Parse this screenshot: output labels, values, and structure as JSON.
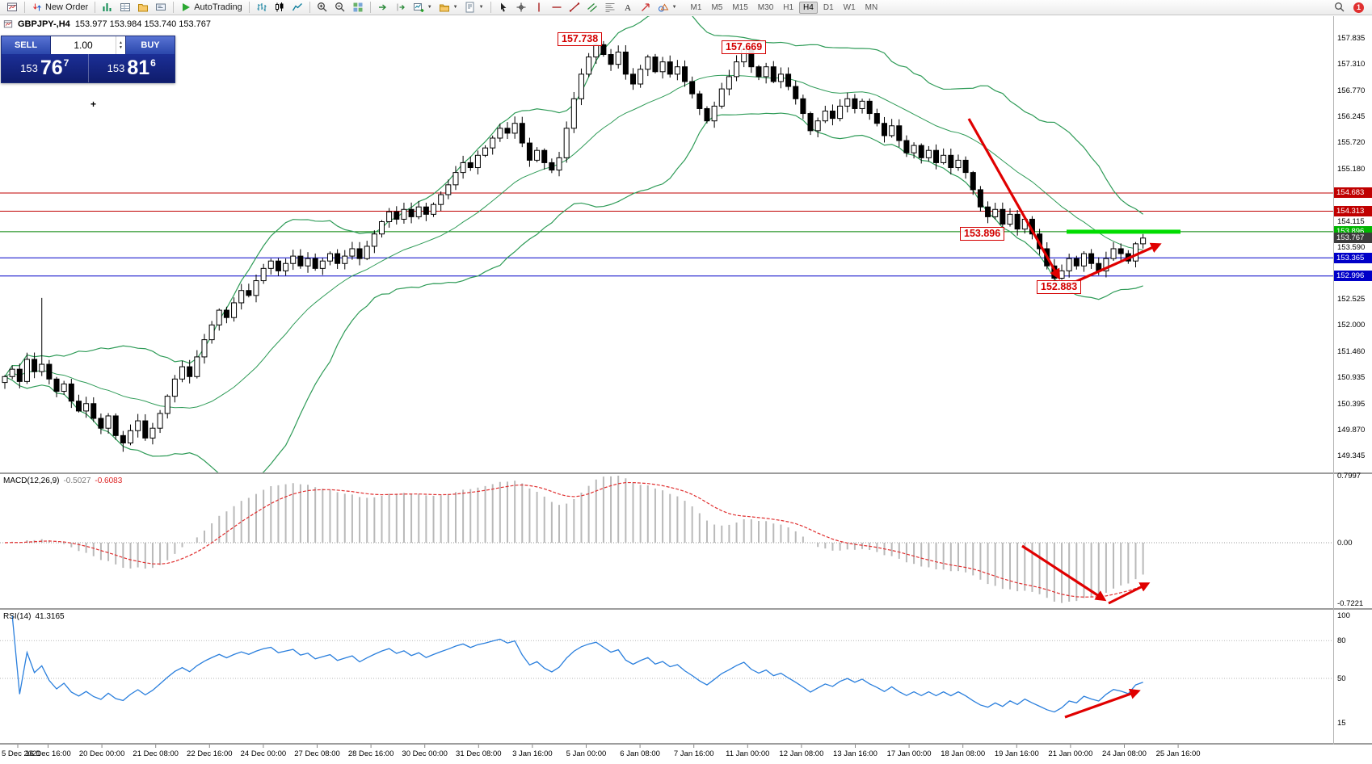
{
  "toolbar": {
    "groups": [
      {
        "items": [
          {
            "icon": "chart-window-icon"
          }
        ]
      },
      {
        "items": [
          {
            "icon": "new-order-icon",
            "label": "New Order"
          }
        ]
      },
      {
        "items": [
          {
            "icon": "market-watch-icon"
          },
          {
            "icon": "data-window-icon"
          },
          {
            "icon": "navigator-icon"
          },
          {
            "icon": "terminal-icon"
          }
        ]
      },
      {
        "items": [
          {
            "icon": "autotrading-icon",
            "label": "AutoTrading"
          }
        ]
      },
      {
        "items": [
          {
            "icon": "bar-chart-icon"
          },
          {
            "icon": "candlestick-chart-icon"
          },
          {
            "icon": "line-chart-icon"
          }
        ]
      },
      {
        "items": [
          {
            "icon": "zoom-in-icon"
          },
          {
            "icon": "zoom-out-icon"
          },
          {
            "icon": "tile-windows-icon"
          }
        ]
      },
      {
        "items": [
          {
            "icon": "auto-scroll-icon"
          },
          {
            "icon": "chart-shift-icon"
          },
          {
            "icon": "new-chart-icon",
            "caret": true
          },
          {
            "icon": "profiles-icon",
            "caret": true
          },
          {
            "icon": "templates-icon",
            "caret": true
          }
        ]
      },
      {
        "items": [
          {
            "icon": "cursor-icon"
          },
          {
            "icon": "crosshair-icon"
          },
          {
            "icon": "vertical-line-icon"
          },
          {
            "icon": "horizontal-line-icon"
          },
          {
            "icon": "trendline-icon"
          },
          {
            "icon": "channel-icon"
          },
          {
            "icon": "fibonacci-icon"
          },
          {
            "icon": "text-icon"
          },
          {
            "icon": "arrow-label-icon"
          },
          {
            "icon": "shapes-icon",
            "caret": true
          }
        ]
      }
    ],
    "timeframes": [
      "M1",
      "M5",
      "M15",
      "M30",
      "H1",
      "H4",
      "D1",
      "W1",
      "MN"
    ],
    "active_timeframe": "H4",
    "notification_count": "1"
  },
  "chart_header": {
    "symbol_period": "GBPJPY-,H4",
    "ohlc": "153.977 153.984 153.740 153.767"
  },
  "trade_panel": {
    "sell_label": "SELL",
    "buy_label": "BUY",
    "volume": "1.00",
    "bid_int": "153",
    "bid_pips": "76",
    "bid_sup": "7",
    "ask_int": "153",
    "ask_pips": "81",
    "ask_sup": "6"
  },
  "annotations": {
    "peak_label": "157.738",
    "second_peak_label": "157.669",
    "resistance_label": "153.896",
    "low_label": "152.883"
  },
  "price_axis": {
    "plain_ticks": [
      "157.835",
      "157.310",
      "156.770",
      "156.245",
      "155.720",
      "155.180",
      "154.115",
      "153.590",
      "152.525",
      "152.000",
      "151.460",
      "150.935",
      "150.395",
      "149.870",
      "149.345"
    ],
    "line_labels": [
      {
        "text": "154.683",
        "price": 154.683,
        "bg": "#c00000",
        "fg": "#ffffff"
      },
      {
        "text": "154.313",
        "price": 154.313,
        "bg": "#c00000",
        "fg": "#ffffff"
      },
      {
        "text": "153.896",
        "price": 153.896,
        "bg": "#00b400",
        "fg": "#ffffff"
      },
      {
        "text": "153.767",
        "price": 153.767,
        "bg": "#3c3c3c",
        "fg": "#ffffff"
      },
      {
        "text": "153.365",
        "price": 153.365,
        "bg": "#0000c8",
        "fg": "#ffffff"
      },
      {
        "text": "152.996",
        "price": 152.996,
        "bg": "#0000c8",
        "fg": "#ffffff"
      }
    ]
  },
  "macd_panel": {
    "label": "MACD(12,26,9)",
    "main_value": "-0.5027",
    "signal_value": "-0.6083",
    "axis_ticks": [
      "0.7997",
      "0.00",
      "-0.7221"
    ]
  },
  "rsi_panel": {
    "label": "RSI(14)",
    "value": "41.3165",
    "axis_ticks": [
      "100",
      "80",
      "50",
      "15"
    ],
    "levels": [
      80,
      50
    ]
  },
  "time_axis": [
    "5 Dec 2021",
    "16 Dec 16:00",
    "20 Dec 00:00",
    "21 Dec 08:00",
    "22 Dec 16:00",
    "24 Dec 00:00",
    "27 Dec 08:00",
    "28 Dec 16:00",
    "30 Dec 00:00",
    "31 Dec 08:00",
    "3 Jan 16:00",
    "5 Jan 00:00",
    "6 Jan 08:00",
    "7 Jan 16:00",
    "11 Jan 00:00",
    "12 Jan 08:00",
    "13 Jan 16:00",
    "17 Jan 00:00",
    "18 Jan 08:00",
    "19 Jan 16:00",
    "21 Jan 00:00",
    "24 Jan 08:00",
    "25 Jan 16:00"
  ],
  "chart_data": {
    "type": "candlestick",
    "symbol": "GBPJPY-",
    "timeframe": "H4",
    "ohlc_header": [
      153.977,
      153.984,
      153.74,
      153.767
    ],
    "ylim": [
      149.0,
      158.28
    ],
    "closes": [
      150.95,
      151.1,
      150.85,
      151.3,
      151.05,
      151.2,
      150.9,
      150.65,
      150.8,
      150.45,
      150.25,
      150.4,
      150.1,
      149.9,
      150.15,
      149.75,
      149.6,
      149.85,
      150.05,
      149.7,
      149.9,
      150.2,
      150.55,
      150.9,
      151.15,
      150.95,
      151.35,
      151.7,
      152.0,
      152.3,
      152.15,
      152.45,
      152.7,
      152.6,
      152.9,
      153.15,
      153.3,
      153.1,
      153.25,
      153.4,
      153.2,
      153.35,
      153.15,
      153.3,
      153.45,
      153.25,
      153.4,
      153.55,
      153.35,
      153.6,
      153.85,
      154.1,
      154.3,
      154.15,
      154.35,
      154.2,
      154.4,
      154.25,
      154.45,
      154.65,
      154.85,
      155.1,
      155.3,
      155.2,
      155.45,
      155.6,
      155.8,
      156.0,
      155.9,
      156.1,
      155.7,
      155.35,
      155.55,
      155.3,
      155.15,
      155.4,
      156.0,
      156.6,
      157.1,
      157.45,
      157.7,
      157.5,
      157.3,
      157.55,
      157.1,
      156.9,
      157.2,
      157.45,
      157.15,
      157.35,
      157.1,
      157.25,
      156.95,
      156.7,
      156.4,
      156.15,
      156.45,
      156.8,
      157.05,
      157.35,
      157.6,
      157.25,
      157.05,
      157.25,
      156.95,
      157.1,
      156.85,
      156.6,
      156.3,
      155.95,
      156.15,
      156.35,
      156.2,
      156.45,
      156.6,
      156.4,
      156.55,
      156.3,
      156.1,
      155.85,
      156.05,
      155.75,
      155.5,
      155.65,
      155.4,
      155.55,
      155.3,
      155.45,
      155.2,
      155.35,
      155.1,
      154.75,
      154.4,
      154.2,
      154.35,
      154.05,
      154.25,
      153.95,
      154.15,
      153.85,
      153.55,
      153.2,
      152.95,
      153.1,
      153.35,
      153.2,
      153.45,
      153.25,
      153.1,
      153.35,
      153.55,
      153.45,
      153.3,
      153.65,
      153.767
    ],
    "wick_overrides": {
      "5": {
        "high": 152.55
      },
      "16": {
        "low": 149.42
      },
      "80": {
        "high": 157.738
      },
      "100": {
        "high": 157.669
      },
      "142": {
        "low": 152.883
      }
    },
    "hlines": [
      {
        "price": 154.683,
        "color": "#c00000",
        "width": 1
      },
      {
        "price": 154.313,
        "color": "#c00000",
        "width": 1
      },
      {
        "price": 153.896,
        "color": "#008000",
        "width": 1
      },
      {
        "price": 153.365,
        "color": "#0000c8",
        "width": 1
      },
      {
        "price": 152.996,
        "color": "#0000c8",
        "width": 1
      }
    ],
    "support_segment": {
      "price": 153.896,
      "color": "#00dd00"
    },
    "indicators": {
      "bollinger": {
        "period": 20,
        "deviation": 2,
        "color": "#2e9b57"
      },
      "macd": {
        "fast": 12,
        "slow": 26,
        "signal": 9,
        "main_value": -0.5027,
        "signal_value": -0.6083,
        "axis_range": [
          -0.7221,
          0.7997
        ]
      },
      "rsi": {
        "period": 14,
        "value": 41.3165,
        "levels": [
          80,
          50
        ]
      }
    },
    "arrows": [
      {
        "panel": "main",
        "direction": "down",
        "color": "#e00000"
      },
      {
        "panel": "main",
        "direction": "up",
        "color": "#e00000"
      },
      {
        "panel": "macd",
        "direction": "down",
        "color": "#e00000"
      },
      {
        "panel": "macd",
        "direction": "up",
        "color": "#e00000"
      },
      {
        "panel": "rsi",
        "direction": "up",
        "color": "#e00000"
      }
    ]
  }
}
